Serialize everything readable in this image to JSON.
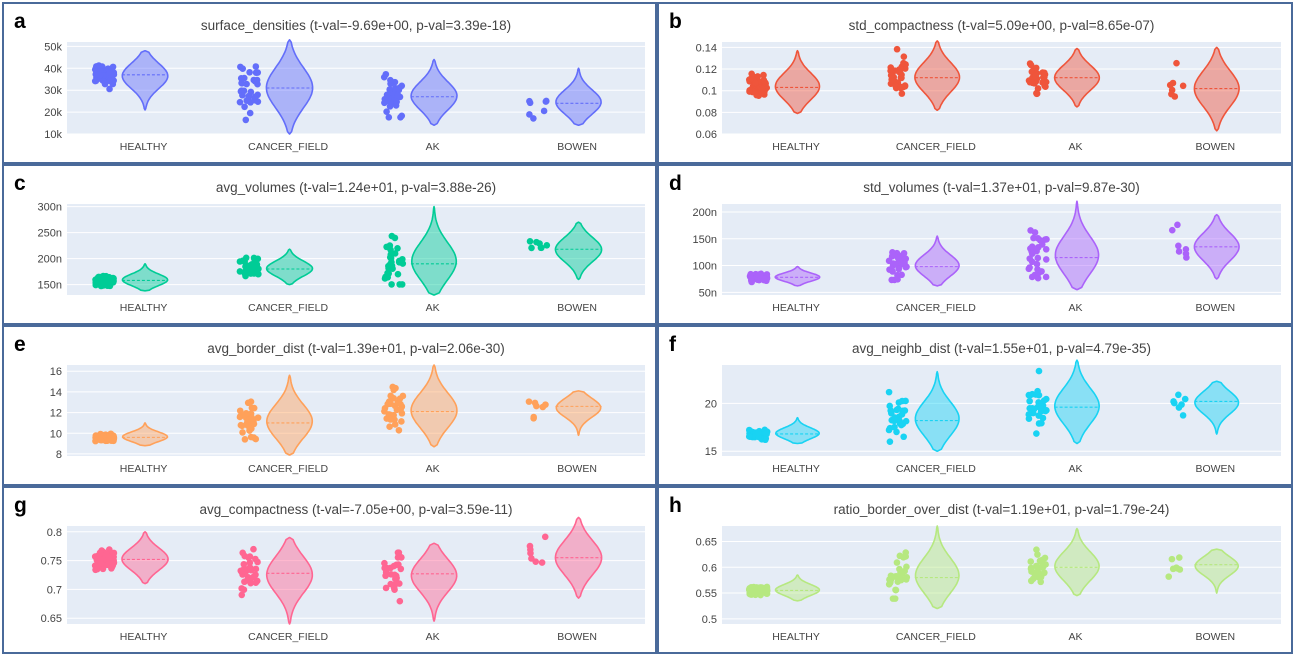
{
  "chart_data": [
    {
      "panel_label": "a",
      "type": "violin",
      "title": "surface_densities (t-val=-9.69e+00, p-val=3.39e-18)",
      "categories": [
        "HEALTHY",
        "CANCER_FIELD",
        "AK",
        "BOWEN"
      ],
      "color": "#636efa",
      "ylim": [
        10,
        52
      ],
      "yticks": [
        10,
        20,
        30,
        40,
        50
      ],
      "ytick_labels": [
        "10k",
        "20k",
        "30k",
        "40k",
        "50k"
      ],
      "series": [
        {
          "category": "HEALTHY",
          "median": 37,
          "min": 21,
          "max": 48,
          "n": 70
        },
        {
          "category": "CANCER_FIELD",
          "median": 31,
          "min": 10,
          "max": 53,
          "n": 35
        },
        {
          "category": "AK",
          "median": 27,
          "min": 14,
          "max": 44,
          "n": 30
        },
        {
          "category": "BOWEN",
          "median": 24,
          "min": 14,
          "max": 40,
          "n": 7
        }
      ]
    },
    {
      "panel_label": "b",
      "type": "violin",
      "title": "std_compactness (t-val=5.09e+00, p-val=8.65e-07)",
      "categories": [
        "HEALTHY",
        "CANCER_FIELD",
        "AK",
        "BOWEN"
      ],
      "color": "#ef553b",
      "ylim": [
        0.06,
        0.145
      ],
      "yticks": [
        0.06,
        0.08,
        0.1,
        0.12,
        0.14
      ],
      "ytick_labels": [
        "0.06",
        "0.08",
        "0.1",
        "0.12",
        "0.14"
      ],
      "series": [
        {
          "category": "HEALTHY",
          "median": 0.103,
          "min": 0.079,
          "max": 0.137,
          "n": 70
        },
        {
          "category": "CANCER_FIELD",
          "median": 0.112,
          "min": 0.082,
          "max": 0.146,
          "n": 35
        },
        {
          "category": "AK",
          "median": 0.112,
          "min": 0.085,
          "max": 0.139,
          "n": 30
        },
        {
          "category": "BOWEN",
          "median": 0.102,
          "min": 0.063,
          "max": 0.14,
          "n": 7
        }
      ]
    },
    {
      "panel_label": "c",
      "type": "violin",
      "title": "avg_volumes (t-val=1.24e+01, p-val=3.88e-26)",
      "categories": [
        "HEALTHY",
        "CANCER_FIELD",
        "AK",
        "BOWEN"
      ],
      "color": "#00cc96",
      "ylim": [
        130,
        305
      ],
      "yticks": [
        150,
        200,
        250,
        300
      ],
      "ytick_labels": [
        "150n",
        "200n",
        "250n",
        "300n"
      ],
      "series": [
        {
          "category": "HEALTHY",
          "median": 158,
          "min": 138,
          "max": 190,
          "n": 70
        },
        {
          "category": "CANCER_FIELD",
          "median": 180,
          "min": 150,
          "max": 218,
          "n": 30
        },
        {
          "category": "AK",
          "median": 190,
          "min": 130,
          "max": 300,
          "n": 30
        },
        {
          "category": "BOWEN",
          "median": 218,
          "min": 160,
          "max": 270,
          "n": 7
        }
      ]
    },
    {
      "panel_label": "d",
      "type": "violin",
      "title": "std_volumes (t-val=1.37e+01, p-val=9.87e-30)",
      "categories": [
        "HEALTHY",
        "CANCER_FIELD",
        "AK",
        "BOWEN"
      ],
      "color": "#ab63fa",
      "ylim": [
        45,
        215
      ],
      "yticks": [
        50,
        100,
        150,
        200
      ],
      "ytick_labels": [
        "50n",
        "100n",
        "150n",
        "200n"
      ],
      "series": [
        {
          "category": "HEALTHY",
          "median": 78,
          "min": 62,
          "max": 98,
          "n": 70
        },
        {
          "category": "CANCER_FIELD",
          "median": 98,
          "min": 62,
          "max": 155,
          "n": 30
        },
        {
          "category": "AK",
          "median": 115,
          "min": 55,
          "max": 220,
          "n": 30
        },
        {
          "category": "BOWEN",
          "median": 135,
          "min": 75,
          "max": 195,
          "n": 7
        }
      ]
    },
    {
      "panel_label": "e",
      "type": "violin",
      "title": "avg_border_dist (t-val=1.39e+01, p-val=2.06e-30)",
      "categories": [
        "HEALTHY",
        "CANCER_FIELD",
        "AK",
        "BOWEN"
      ],
      "color": "#ffa15a",
      "ylim": [
        7.8,
        16.6
      ],
      "yticks": [
        8,
        10,
        12,
        14,
        16
      ],
      "ytick_labels": [
        "8",
        "10",
        "12",
        "14",
        "16"
      ],
      "series": [
        {
          "category": "HEALTHY",
          "median": 9.6,
          "min": 8.8,
          "max": 11.0,
          "n": 70
        },
        {
          "category": "CANCER_FIELD",
          "median": 11.0,
          "min": 7.9,
          "max": 15.6,
          "n": 30
        },
        {
          "category": "AK",
          "median": 12.1,
          "min": 8.7,
          "max": 16.6,
          "n": 30
        },
        {
          "category": "BOWEN",
          "median": 12.6,
          "min": 9.8,
          "max": 14.1,
          "n": 7
        }
      ]
    },
    {
      "panel_label": "f",
      "type": "violin",
      "title": "avg_neighb_dist (t-val=1.55e+01, p-val=4.79e-35)",
      "categories": [
        "HEALTHY",
        "CANCER_FIELD",
        "AK",
        "BOWEN"
      ],
      "color": "#19d3f3",
      "ylim": [
        14.5,
        24
      ],
      "yticks": [
        15,
        20
      ],
      "ytick_labels": [
        "15",
        "20"
      ],
      "series": [
        {
          "category": "HEALTHY",
          "median": 16.8,
          "min": 15.8,
          "max": 18.5,
          "n": 70
        },
        {
          "category": "CANCER_FIELD",
          "median": 18.2,
          "min": 15.0,
          "max": 23.3,
          "n": 30
        },
        {
          "category": "AK",
          "median": 19.6,
          "min": 15.8,
          "max": 24.5,
          "n": 30
        },
        {
          "category": "BOWEN",
          "median": 20.2,
          "min": 16.8,
          "max": 22.3,
          "n": 7
        }
      ]
    },
    {
      "panel_label": "g",
      "type": "violin",
      "title": "avg_compactness (t-val=-7.05e+00, p-val=3.59e-11)",
      "categories": [
        "HEALTHY",
        "CANCER_FIELD",
        "AK",
        "BOWEN"
      ],
      "color": "#ff6692",
      "ylim": [
        0.64,
        0.81
      ],
      "yticks": [
        0.65,
        0.7,
        0.75,
        0.8
      ],
      "ytick_labels": [
        "0.65",
        "0.7",
        "0.75",
        "0.8"
      ],
      "series": [
        {
          "category": "HEALTHY",
          "median": 0.752,
          "min": 0.71,
          "max": 0.8,
          "n": 70
        },
        {
          "category": "CANCER_FIELD",
          "median": 0.728,
          "min": 0.64,
          "max": 0.79,
          "n": 30
        },
        {
          "category": "AK",
          "median": 0.727,
          "min": 0.645,
          "max": 0.78,
          "n": 30
        },
        {
          "category": "BOWEN",
          "median": 0.755,
          "min": 0.685,
          "max": 0.825,
          "n": 7
        }
      ]
    },
    {
      "panel_label": "h",
      "type": "violin",
      "title": "ratio_border_over_dist (t-val=1.19e+01, p-val=1.79e-24)",
      "categories": [
        "HEALTHY",
        "CANCER_FIELD",
        "AK",
        "BOWEN"
      ],
      "color": "#b6e880",
      "ylim": [
        0.49,
        0.68
      ],
      "yticks": [
        0.5,
        0.55,
        0.6,
        0.65
      ],
      "ytick_labels": [
        "0.5",
        "0.55",
        "0.6",
        "0.65"
      ],
      "series": [
        {
          "category": "HEALTHY",
          "median": 0.555,
          "min": 0.535,
          "max": 0.585,
          "n": 70
        },
        {
          "category": "CANCER_FIELD",
          "median": 0.58,
          "min": 0.52,
          "max": 0.68,
          "n": 30
        },
        {
          "category": "AK",
          "median": 0.6,
          "min": 0.545,
          "max": 0.675,
          "n": 30
        },
        {
          "category": "BOWEN",
          "median": 0.605,
          "min": 0.55,
          "max": 0.635,
          "n": 7
        }
      ]
    }
  ]
}
